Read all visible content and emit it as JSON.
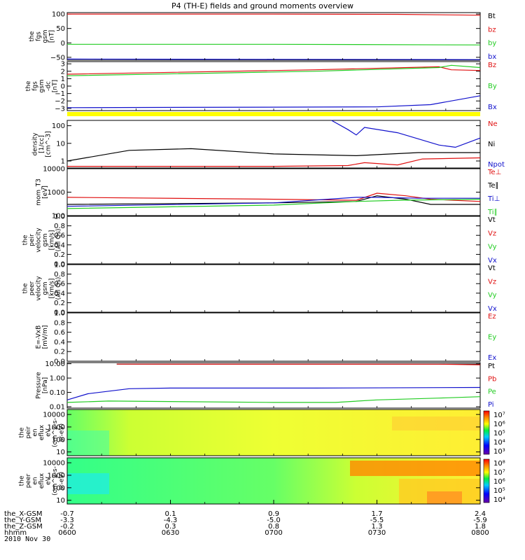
{
  "title": "P4 (TH-E) fields and ground moments overview",
  "date_label": "2010 Nov 30",
  "colors": {
    "red": "#e01010",
    "green": "#22cc22",
    "blue": "#1010cc",
    "black": "#000000",
    "yellow": "#ffff00"
  },
  "chart_data": [
    {
      "type": "line",
      "id": "fgs_gsm",
      "ylabel": [
        "the",
        "fgs",
        "gsm",
        "[nT]"
      ],
      "yticks": [
        "100",
        "50",
        "0",
        "−50"
      ],
      "ylim": [
        -60,
        105
      ],
      "series": [
        {
          "name": "Bt",
          "color": "black",
          "values": []
        },
        {
          "name": "bz",
          "color": "red",
          "x": [
            0,
            0.5,
            0.8,
            1
          ],
          "values": [
            100,
            100,
            99,
            96
          ]
        },
        {
          "name": "by",
          "color": "green",
          "x": [
            0,
            0.5,
            1
          ],
          "values": [
            -5,
            -5,
            -7
          ]
        },
        {
          "name": "bx",
          "color": "blue",
          "x": [
            0,
            0.5,
            1
          ],
          "values": [
            -56,
            -57,
            -58
          ]
        }
      ]
    },
    {
      "type": "line",
      "id": "fgs_gsm_dc",
      "ylabel": [
        "the",
        "fgs",
        "gsm",
        "-dc",
        "[nT]"
      ],
      "yticks": [
        "3",
        "2",
        "1",
        "0",
        "−1",
        "−2",
        "−3"
      ],
      "ylim": [
        -3.3,
        3.3
      ],
      "series": [
        {
          "name": "Bz",
          "color": "red",
          "x": [
            0,
            0.6,
            0.9,
            0.93,
            1
          ],
          "values": [
            1.6,
            2.2,
            2.6,
            2.2,
            2.1
          ]
        },
        {
          "name": "By",
          "color": "green",
          "x": [
            0,
            0.6,
            0.9,
            0.93,
            1
          ],
          "values": [
            1.4,
            2.0,
            2.5,
            2.8,
            2.5
          ]
        },
        {
          "name": "Bx",
          "color": "blue",
          "x": [
            0,
            0.75,
            0.88,
            1
          ],
          "values": [
            -2.9,
            -2.8,
            -2.5,
            -1.3
          ]
        }
      ]
    },
    {
      "type": "line",
      "id": "density",
      "scale": "log",
      "ylabel": [
        "density",
        "[1/cc]",
        "[cm^-3]"
      ],
      "yticks": [
        "100",
        "10",
        "1"
      ],
      "ylim": [
        0.4,
        200
      ],
      "series": [
        {
          "name": "Ne",
          "color": "red",
          "x": [
            0,
            0.5,
            0.68,
            0.72,
            0.8,
            0.86,
            1
          ],
          "values": [
            0.5,
            0.5,
            0.55,
            0.8,
            0.6,
            1.3,
            1.5
          ]
        },
        {
          "name": "Ni",
          "color": "black",
          "x": [
            0,
            0.15,
            0.3,
            0.5,
            0.7,
            0.85,
            1
          ],
          "values": [
            1,
            4,
            5,
            2.5,
            2,
            3,
            3
          ]
        },
        {
          "name": "Npot",
          "color": "blue",
          "x": [
            0.64,
            0.68,
            0.7,
            0.72,
            0.8,
            0.9,
            0.94,
            1
          ],
          "values": [
            200,
            60,
            30,
            80,
            40,
            8,
            6,
            20
          ]
        }
      ]
    },
    {
      "type": "line",
      "id": "mom_t3",
      "scale": "log",
      "ylabel": [
        "mom_T3",
        "[eV]"
      ],
      "yticks": [
        "10000",
        "1000",
        "100"
      ],
      "ylim": [
        100,
        10000
      ],
      "series": [
        {
          "name": "Te⊥",
          "color": "red",
          "x": [
            0,
            0.5,
            0.7,
            0.75,
            0.82,
            0.88,
            1
          ],
          "values": [
            600,
            500,
            450,
            900,
            700,
            500,
            400
          ]
        },
        {
          "name": "Te∥",
          "color": "black",
          "x": [
            0,
            0.5,
            0.7,
            0.75,
            0.82,
            0.88,
            1
          ],
          "values": [
            300,
            350,
            400,
            700,
            500,
            300,
            300
          ]
        },
        {
          "name": "Ti⊥",
          "color": "blue",
          "x": [
            0,
            0.5,
            0.7,
            0.75,
            0.85,
            1
          ],
          "values": [
            250,
            350,
            600,
            600,
            550,
            550
          ]
        },
        {
          "name": "Ti∥",
          "color": "green",
          "x": [
            0,
            0.5,
            0.7,
            0.8,
            1
          ],
          "values": [
            200,
            280,
            400,
            450,
            500
          ]
        }
      ]
    },
    {
      "type": "line",
      "id": "peir_velocity",
      "ylabel": [
        "the",
        "peir",
        "velocity",
        "gsm",
        "[km/s]",
        "(All Qs)"
      ],
      "yticks": [
        "1.0",
        "0.8",
        "0.6",
        "0.4",
        "0.2",
        "0.0"
      ],
      "ylim": [
        0,
        1
      ],
      "series": [
        {
          "name": "Vt",
          "color": "black",
          "values": []
        },
        {
          "name": "Vz",
          "color": "red",
          "values": []
        },
        {
          "name": "Vy",
          "color": "green",
          "values": []
        },
        {
          "name": "Vx",
          "color": "blue",
          "values": []
        }
      ]
    },
    {
      "type": "line",
      "id": "peer_velocity",
      "ylabel": [
        "the",
        "peer",
        "velocity",
        "gsm",
        "[km/s]",
        "(All Qs)"
      ],
      "yticks": [
        "1.0",
        "0.8",
        "0.6",
        "0.4",
        "0.2",
        "0.0"
      ],
      "ylim": [
        0,
        1
      ],
      "series": [
        {
          "name": "Vt",
          "color": "black",
          "values": []
        },
        {
          "name": "Vz",
          "color": "red",
          "values": []
        },
        {
          "name": "Vy",
          "color": "green",
          "values": []
        },
        {
          "name": "Vx",
          "color": "blue",
          "values": []
        }
      ]
    },
    {
      "type": "line",
      "id": "e_vxb",
      "ylabel": [
        "E=-VxB",
        "[mV/m]"
      ],
      "yticks": [
        "1.0",
        "0.8",
        "0.6",
        "0.4",
        "0.2",
        "0.0"
      ],
      "ylim": [
        0,
        1
      ],
      "series": [
        {
          "name": "Ez",
          "color": "red",
          "values": []
        },
        {
          "name": "Ey",
          "color": "green",
          "values": []
        },
        {
          "name": "Ex",
          "color": "blue",
          "values": []
        }
      ]
    },
    {
      "type": "line",
      "id": "pressure",
      "scale": "log",
      "ylabel": [
        "Pressure",
        "[nPa]"
      ],
      "yticks": [
        "10.00",
        "1.00",
        "0.10",
        "0.01"
      ],
      "ylim": [
        0.008,
        12
      ],
      "series": [
        {
          "name": "Pt",
          "color": "black",
          "x": [
            0.12,
            1
          ],
          "values": [
            9.5,
            9.5
          ]
        },
        {
          "name": "Pb",
          "color": "red",
          "x": [
            0.12,
            0.9,
            1
          ],
          "values": [
            9.4,
            9.3,
            8.5
          ]
        },
        {
          "name": "Pe",
          "color": "green",
          "x": [
            0,
            0.1,
            0.5,
            0.65,
            0.75,
            0.9,
            1
          ],
          "values": [
            0.02,
            0.025,
            0.02,
            0.02,
            0.03,
            0.04,
            0.05
          ]
        },
        {
          "name": "Pi",
          "color": "blue",
          "x": [
            0,
            0.05,
            0.15,
            0.25,
            0.6,
            1
          ],
          "values": [
            0.03,
            0.08,
            0.18,
            0.2,
            0.2,
            0.22
          ]
        }
      ]
    },
    {
      "type": "heatmap",
      "id": "peir_eflux",
      "scale": "log",
      "ylabel": [
        "the",
        "peir",
        "en",
        "eflux",
        "eV",
        "(cm^2-s-",
        "sr-eV)"
      ],
      "yticks": [
        "10000",
        "1000",
        "100",
        "10"
      ],
      "ylim": [
        5,
        25000
      ],
      "colorbar_ticks": [
        "10⁷",
        "10⁶",
        "10⁵",
        "10⁴",
        "10³"
      ]
    },
    {
      "type": "heatmap",
      "id": "peer_eflux",
      "scale": "log",
      "ylabel": [
        "the",
        "peer",
        "en",
        "eflux",
        "eV",
        "(cm^2-s-",
        "sr-eV)"
      ],
      "yticks": [
        "10000",
        "1000",
        "100",
        "10"
      ],
      "ylim": [
        5,
        25000
      ],
      "colorbar_ticks": [
        "10⁸",
        "10⁷",
        "10⁶",
        "10⁵",
        "10⁴"
      ]
    }
  ],
  "x_axis": {
    "row_labels": [
      "the_X-GSM",
      "the_Y-GSM",
      "the_Z-GSM",
      "hhmm"
    ],
    "ticks": [
      {
        "rows": [
          "-0.7",
          "-3.3",
          "-0.2",
          "0600"
        ]
      },
      {
        "rows": [
          "0.1",
          "-4.3",
          "0.3",
          "0630"
        ]
      },
      {
        "rows": [
          "0.9",
          "-5.0",
          "0.8",
          "0700"
        ]
      },
      {
        "rows": [
          "1.7",
          "-5.5",
          "1.3",
          "0730"
        ]
      },
      {
        "rows": [
          "2.4",
          "-5.9",
          "1.8",
          "0800"
        ]
      }
    ]
  }
}
